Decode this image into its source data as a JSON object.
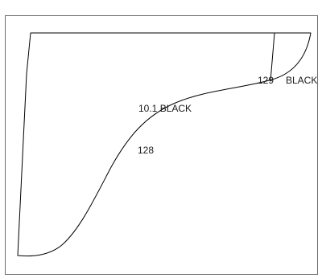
{
  "labels": {
    "region_a": "10.1 BLACK",
    "region_b": "128",
    "corner_number": "129",
    "corner_name": "BLACK"
  }
}
